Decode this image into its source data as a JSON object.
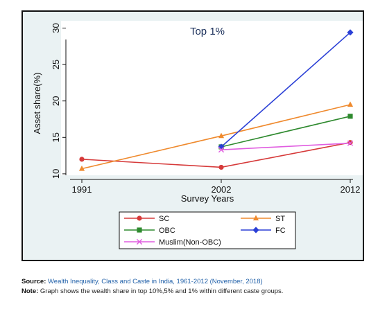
{
  "chart_data": {
    "type": "line",
    "title": "Top 1%",
    "xlabel": "Survey Years",
    "ylabel": "Asset share(%)",
    "categories": [
      "1991",
      "2002",
      "2012"
    ],
    "y_ticks": [
      "10",
      "15",
      "20",
      "25",
      "30"
    ],
    "ylim": [
      9.8,
      31
    ],
    "grid": false,
    "legend_position": "bottom",
    "series": [
      {
        "name": "SC",
        "color": "#d63a3a",
        "marker": "circle",
        "values": [
          12.0,
          10.9,
          14.3
        ]
      },
      {
        "name": "ST",
        "color": "#ef8a2e",
        "marker": "triangle",
        "values": [
          10.7,
          15.2,
          19.5
        ]
      },
      {
        "name": "OBC",
        "color": "#2f8a2f",
        "marker": "square",
        "values": [
          null,
          13.7,
          17.9
        ]
      },
      {
        "name": "FC",
        "color": "#2a3fd6",
        "marker": "diamond",
        "values": [
          null,
          13.7,
          29.4
        ]
      },
      {
        "name": "Muslim(Non-OBC)",
        "color": "#e05de0",
        "marker": "x",
        "values": [
          null,
          13.3,
          14.2
        ]
      }
    ],
    "colors": {
      "frame_background": "#eaf2f3",
      "plot_background": "#ffffff"
    }
  },
  "caption": {
    "source_label": "Source:",
    "source_link": "Wealth Inequality, Class and Caste in India, 1961-2012 (November, 2018)",
    "note_label": "Note:",
    "note_text": "Graph shows the wealth share in top 10%,5% and 1% within different caste groups."
  }
}
